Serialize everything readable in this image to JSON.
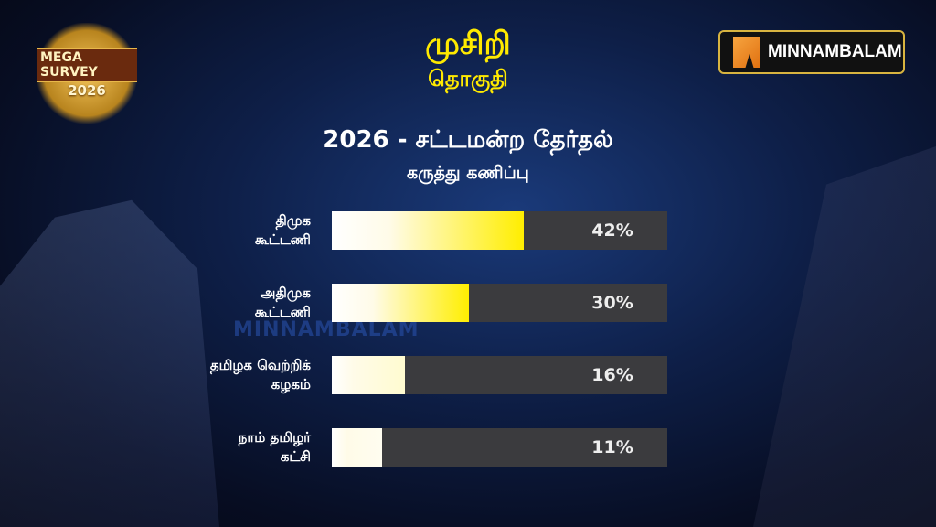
{
  "header": {
    "constituency": "முசிறி",
    "constituency_sub": "தொகுதி",
    "title": "2026 - சட்டமன்ற தேர்தல்",
    "subtitle": "கருத்து கணிப்பு"
  },
  "branding": {
    "logo_text": "MINNAMBALAM",
    "watermark": "MINNAMBALAM",
    "badge": {
      "line1": "MEGA SURVEY",
      "line2": "2026"
    }
  },
  "colors": {
    "bar_start": "#ffffff",
    "bar_end": "#ffee00",
    "track": "#3b3b3e",
    "title_yellow": "#ffea00"
  },
  "chart_data": {
    "type": "bar",
    "orientation": "horizontal",
    "title": "2026 - சட்டமன்ற தேர்தல்",
    "subtitle": "கருத்து கணிப்பு",
    "categories": [
      [
        "திமுக",
        "கூட்டணி"
      ],
      [
        "அதிமுக",
        "கூட்டணி"
      ],
      [
        "தமிழக வெற்றிக்",
        "கழகம்"
      ],
      [
        "நாம் தமிழர்",
        "கட்சி"
      ]
    ],
    "values": [
      42,
      30,
      16,
      11
    ],
    "value_labels": [
      "42%",
      "30%",
      "16%",
      "11%"
    ],
    "xlim": [
      0,
      73.5
    ],
    "grid": false,
    "legend": "none"
  }
}
